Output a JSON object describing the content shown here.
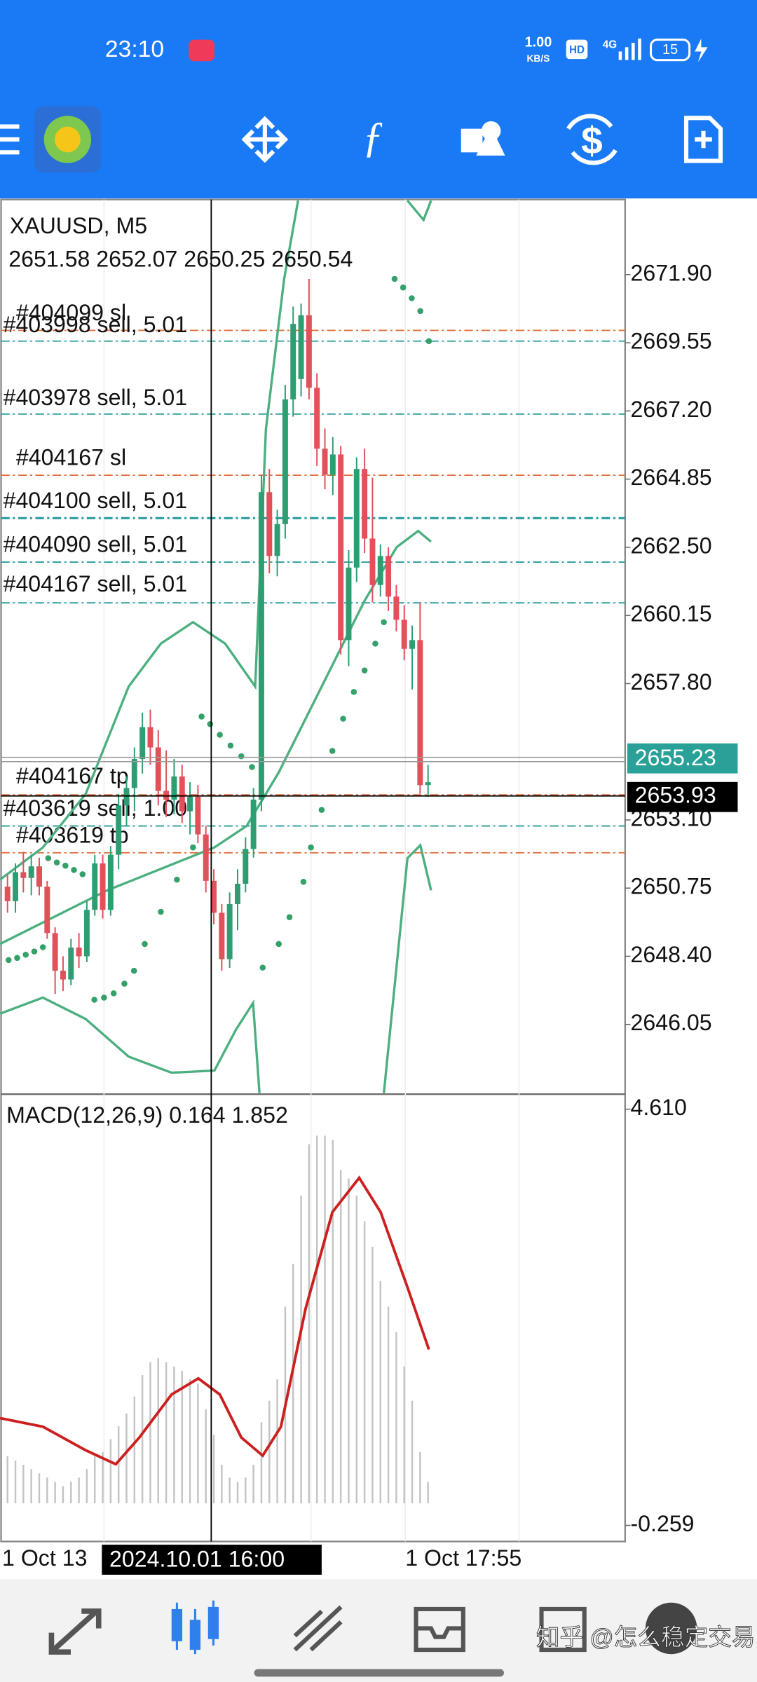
{
  "status_bar": {
    "time": "23:10",
    "net_speed": "1.00",
    "net_unit": "KB/S",
    "hd": "HD",
    "signal": "4G",
    "battery": "15"
  },
  "chart": {
    "symbol": "XAUUSD, M5",
    "ohlc": "2651.58 2652.07 2650.25 2650.54",
    "price_ticks": [
      {
        "value": 2671.9,
        "label": "2671.90"
      },
      {
        "value": 2669.55,
        "label": "2669.55"
      },
      {
        "value": 2667.2,
        "label": "2667.20"
      },
      {
        "value": 2664.85,
        "label": "2664.85"
      },
      {
        "value": 2662.5,
        "label": "2662.50"
      },
      {
        "value": 2660.15,
        "label": "2660.15"
      },
      {
        "value": 2657.8,
        "label": "2657.80"
      },
      {
        "value": 2653.1,
        "label": "2653.10"
      },
      {
        "value": 2650.75,
        "label": "2650.75"
      },
      {
        "value": 2648.4,
        "label": "2648.40"
      },
      {
        "value": 2646.05,
        "label": "2646.05"
      }
    ],
    "order_lines": [
      "#404099 sl",
      "#403998 sell, 5.01",
      "#403978 sell, 5.01",
      "#404167 sl",
      "#404100 sell, 5.01",
      "#404090 sell, 5.01",
      "#404167 sell, 5.01",
      "#404167 tp",
      "#403619 sell, 1.00",
      "#403619 tp"
    ],
    "bid": "2655.23",
    "crosshair_price": "2653.93",
    "crosshair_time": "2024.10.01 16:00",
    "time_labels": [
      "1 Oct 13",
      "1 Oct 17:55"
    ],
    "candles": [
      [
        2650.8,
        2651.2,
        2649.9,
        2650.3
      ],
      [
        2650.3,
        2651.6,
        2649.9,
        2651.3
      ],
      [
        2651.3,
        2652.0,
        2650.6,
        2651.1
      ],
      [
        2651.1,
        2651.9,
        2650.5,
        2651.5
      ],
      [
        2651.5,
        2651.8,
        2650.5,
        2650.8
      ],
      [
        2650.8,
        2651.0,
        2649.0,
        2649.2
      ],
      [
        2649.2,
        2649.4,
        2647.1,
        2647.9
      ],
      [
        2647.9,
        2648.4,
        2647.2,
        2647.6
      ],
      [
        2647.6,
        2649.0,
        2647.4,
        2648.7
      ],
      [
        2648.7,
        2649.2,
        2648.0,
        2648.4
      ],
      [
        2648.4,
        2650.3,
        2648.2,
        2650.0
      ],
      [
        2650.0,
        2651.9,
        2649.8,
        2651.6
      ],
      [
        2651.6,
        2651.9,
        2649.7,
        2650.0
      ],
      [
        2650.0,
        2652.2,
        2649.8,
        2651.9
      ],
      [
        2651.9,
        2654.0,
        2651.4,
        2653.6
      ],
      [
        2653.6,
        2654.6,
        2652.9,
        2654.2
      ],
      [
        2654.2,
        2655.6,
        2653.4,
        2655.2
      ],
      [
        2655.2,
        2656.8,
        2654.7,
        2656.3
      ],
      [
        2656.3,
        2656.9,
        2655.0,
        2655.6
      ],
      [
        2655.6,
        2656.2,
        2653.6,
        2654.1
      ],
      [
        2654.1,
        2655.5,
        2653.2,
        2653.8
      ],
      [
        2653.8,
        2655.2,
        2653.3,
        2654.6
      ],
      [
        2654.6,
        2655.0,
        2653.0,
        2653.4
      ],
      [
        2653.4,
        2654.4,
        2652.6,
        2653.9
      ],
      [
        2653.9,
        2654.3,
        2652.3,
        2652.6
      ],
      [
        2652.6,
        2652.9,
        2650.6,
        2651.0
      ],
      [
        2651.0,
        2651.4,
        2649.5,
        2649.9
      ],
      [
        2649.9,
        2650.2,
        2647.9,
        2648.3
      ],
      [
        2648.3,
        2650.6,
        2648.0,
        2650.2
      ],
      [
        2650.2,
        2651.4,
        2649.3,
        2650.9
      ],
      [
        2650.9,
        2652.5,
        2650.6,
        2652.1
      ],
      [
        2652.1,
        2654.2,
        2651.8,
        2653.8
      ],
      [
        2653.8,
        2665.0,
        2653.4,
        2664.4
      ],
      [
        2664.4,
        2665.2,
        2661.6,
        2662.2
      ],
      [
        2662.2,
        2663.8,
        2661.5,
        2663.3
      ],
      [
        2663.3,
        2668.1,
        2662.8,
        2667.6
      ],
      [
        2667.6,
        2670.8,
        2667.0,
        2670.2
      ],
      [
        2668.3,
        2670.9,
        2667.7,
        2670.5
      ],
      [
        2670.5,
        2671.75,
        2667.6,
        2668.0
      ],
      [
        2668.0,
        2668.5,
        2665.3,
        2665.9
      ],
      [
        2665.9,
        2666.6,
        2664.5,
        2665.0
      ],
      [
        2665.0,
        2666.3,
        2664.3,
        2665.7
      ],
      [
        2665.7,
        2666.0,
        2658.8,
        2659.3
      ],
      [
        2659.3,
        2662.4,
        2658.4,
        2661.8
      ],
      [
        2661.8,
        2665.6,
        2661.3,
        2665.2
      ],
      [
        2665.2,
        2665.9,
        2662.3,
        2662.8
      ],
      [
        2662.8,
        2664.9,
        2660.6,
        2661.2
      ],
      [
        2661.2,
        2662.6,
        2660.8,
        2662.2
      ],
      [
        2662.2,
        2662.5,
        2660.3,
        2660.8
      ],
      [
        2660.8,
        2661.2,
        2659.6,
        2660.0
      ],
      [
        2660.0,
        2660.5,
        2658.6,
        2659.0
      ],
      [
        2659.0,
        2659.8,
        2657.6,
        2659.3
      ],
      [
        2659.3,
        2660.6,
        2654.0,
        2654.3
      ],
      [
        2654.3,
        2655.0,
        2653.9,
        2654.4
      ]
    ],
    "macd": {
      "label": "MACD(12,26,9) 0.164 1.852",
      "ticks": [
        {
          "value": 4.61,
          "label": "4.610"
        },
        -0.259
      ],
      "histogram": [
        0.55,
        0.5,
        0.45,
        0.4,
        0.35,
        0.3,
        0.25,
        0.2,
        0.25,
        0.3,
        0.4,
        0.55,
        0.6,
        0.75,
        0.9,
        1.05,
        1.25,
        1.5,
        1.65,
        1.7,
        1.65,
        1.6,
        1.55,
        1.45,
        1.4,
        1.1,
        0.8,
        0.45,
        0.3,
        0.25,
        0.3,
        0.45,
        0.95,
        1.2,
        1.45,
        2.3,
        2.8,
        3.6,
        4.2,
        4.3,
        4.3,
        4.25,
        3.9,
        3.8,
        3.6,
        3.3,
        3.0,
        2.6,
        2.3,
        2.0,
        1.6,
        1.2,
        0.6,
        0.25
      ]
    }
  },
  "watermark": "知乎 @怎么稳定交易"
}
